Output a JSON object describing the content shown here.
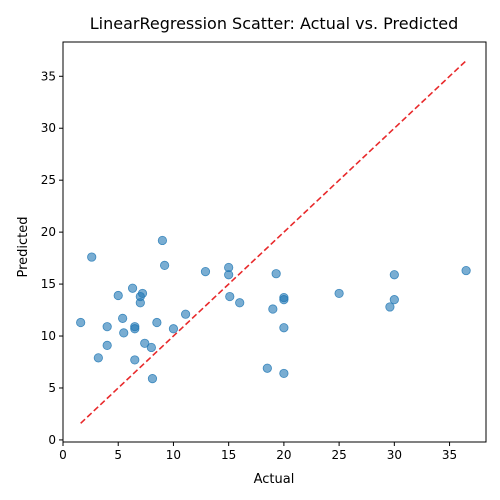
{
  "chart_data": {
    "type": "scatter",
    "title": "LinearRegression Scatter: Actual vs. Predicted",
    "xlabel": "Actual",
    "ylabel": "Predicted",
    "xlim": [
      0,
      38.3
    ],
    "ylim": [
      -0.2,
      38.3
    ],
    "xticks": [
      0,
      5,
      10,
      15,
      20,
      25,
      30,
      35
    ],
    "yticks": [
      0,
      5,
      10,
      15,
      20,
      25,
      30,
      35
    ],
    "grid": false,
    "colors": {
      "points": "#1f77b4",
      "reference_line": "#e8292b"
    },
    "reference_line": {
      "x": [
        1.6,
        36.5
      ],
      "y": [
        1.6,
        36.5
      ],
      "style": "dashed"
    },
    "series": [
      {
        "x": [
          1.6,
          2.6,
          3.2,
          4.0,
          4.0,
          5.0,
          5.4,
          5.5,
          6.3,
          6.5,
          6.5,
          6.5,
          7.0,
          7.0,
          7.2,
          7.4,
          8.0,
          8.1,
          8.5,
          9.0,
          9.2,
          10.0,
          11.1,
          12.9,
          15.0,
          15.0,
          15.1,
          16.0,
          18.5,
          19.0,
          19.3,
          20.0,
          20.0,
          20.0,
          20.0,
          25.0,
          29.6,
          30.0,
          30.0,
          36.5
        ],
        "y": [
          11.3,
          17.6,
          7.9,
          10.9,
          9.1,
          13.9,
          11.7,
          10.3,
          14.6,
          10.9,
          10.7,
          7.7,
          13.2,
          13.8,
          14.1,
          9.3,
          8.9,
          5.9,
          11.3,
          19.2,
          16.8,
          10.7,
          12.1,
          16.2,
          16.6,
          15.9,
          13.8,
          13.2,
          6.9,
          12.6,
          16.0,
          13.7,
          13.5,
          10.8,
          6.4,
          14.1,
          12.8,
          15.9,
          13.5,
          16.3
        ]
      }
    ]
  }
}
